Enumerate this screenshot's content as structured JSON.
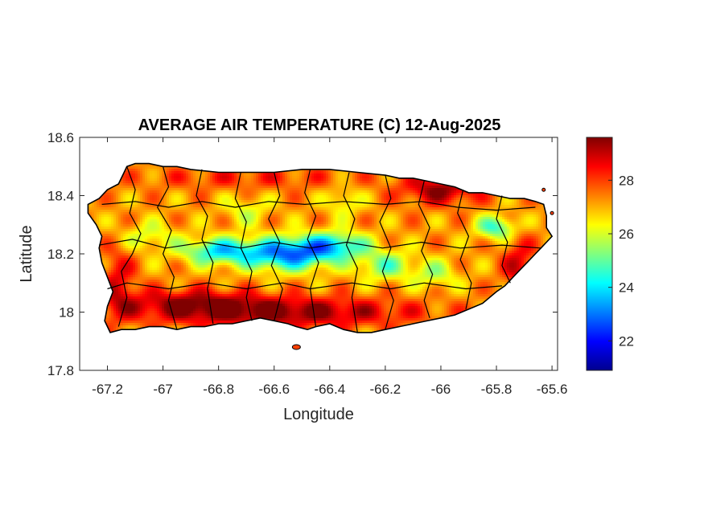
{
  "map": {
    "title": "AVERAGE AIR TEMPERATURE (C) 12-Aug-2025",
    "xlabel": "Longitude",
    "ylabel": "Latitude",
    "region": "Puerto Rico",
    "variable_unit": "C",
    "x_range": [
      -67.3,
      -65.58
    ],
    "y_range": [
      17.8,
      18.6
    ],
    "x_ticks": [
      -67.2,
      -67,
      -66.8,
      -66.6,
      -66.4,
      -66.2,
      -66,
      -65.8,
      -65.6
    ],
    "x_tick_labels": [
      "-67.2",
      "-67",
      "-66.8",
      "-66.6",
      "-66.4",
      "-66.2",
      "-66",
      "-65.8",
      "-65.6"
    ],
    "y_ticks": [
      17.8,
      18,
      18.2,
      18.4,
      18.6
    ],
    "y_tick_labels": [
      "17.8",
      "18",
      "18.2",
      "18.4",
      "18.6"
    ],
    "colormap": "jet",
    "colorbar": {
      "range": [
        20.9,
        29.6
      ],
      "ticks": [
        22,
        24,
        26,
        28
      ],
      "tick_labels": [
        "22",
        "24",
        "26",
        "28"
      ]
    },
    "colors": {
      "low": "#00008f",
      "mid": "#f0f000",
      "high": "#800000",
      "boundary": "#000000"
    }
  }
}
